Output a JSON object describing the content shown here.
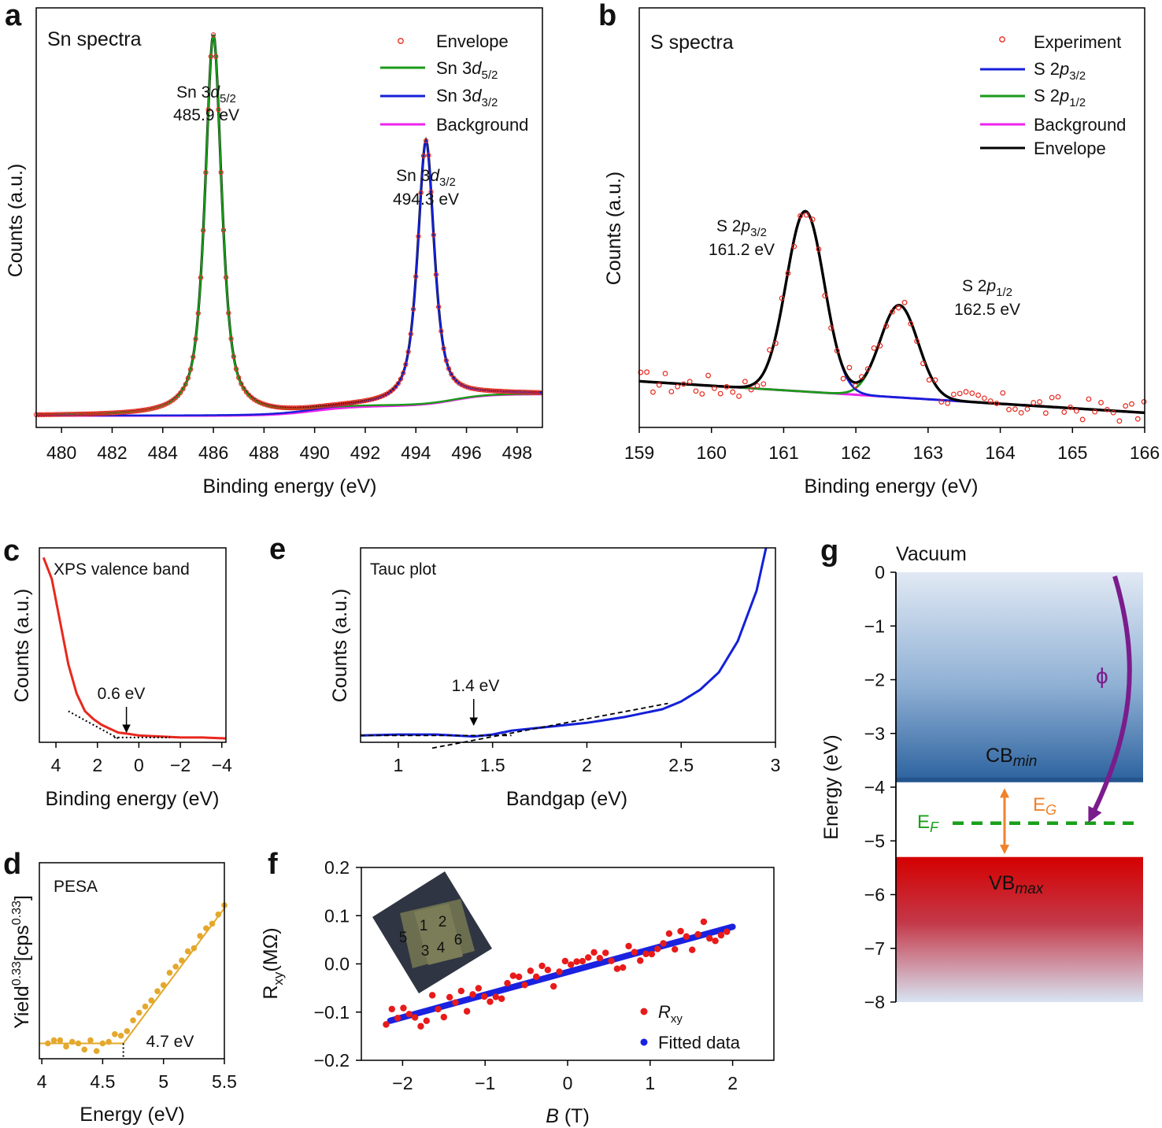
{
  "panels": {
    "a": {
      "letter": "a",
      "title": "Sn spectra"
    },
    "b": {
      "letter": "b",
      "title": "S spectra"
    },
    "c": {
      "letter": "c",
      "title": "XPS valence band"
    },
    "d": {
      "letter": "d",
      "title": "PESA"
    },
    "e": {
      "letter": "e",
      "title": "Tauc plot"
    },
    "f": {
      "letter": "f",
      "title": ""
    },
    "g": {
      "letter": "g",
      "title": "Vacuum"
    }
  },
  "chart_data": [
    {
      "id": "a",
      "type": "line",
      "title": "Sn spectra",
      "xlabel": "Binding energy (eV)",
      "ylabel": "Counts (a.u.)",
      "xlim": [
        479,
        499
      ],
      "ylim": [
        0,
        1.07
      ],
      "xticks": [
        480,
        482,
        484,
        486,
        488,
        490,
        492,
        494,
        496,
        498
      ],
      "series": [
        {
          "name": "Envelope",
          "style": "markers",
          "color": "#e8281e"
        },
        {
          "name": "Sn 3d5/2",
          "color": "#1a9a1a",
          "peaks": [
            [
              486.0,
              0.97,
              0.78
            ]
          ]
        },
        {
          "name": "Sn 3d3/2",
          "color": "#1420d8",
          "peaks": [
            [
              494.4,
              0.67,
              0.78
            ]
          ]
        },
        {
          "name": "Background",
          "color": "#ee22ee"
        }
      ],
      "background": {
        "start": 0.03,
        "step1_at": 490.0,
        "step1": 0.025,
        "step2_at": 495.5,
        "step2": 0.03
      },
      "annotations": [
        {
          "label": "Sn 3d5/2",
          "text": "485.9 eV"
        },
        {
          "label": "Sn 3d3/2",
          "text": "494.3 eV"
        }
      ]
    },
    {
      "id": "b",
      "type": "line",
      "title": "S spectra",
      "xlabel": "Binding energy (eV)",
      "ylabel": "Counts (a.u.)",
      "xlim": [
        159,
        166
      ],
      "ylim": [
        0,
        1
      ],
      "xticks": [
        159,
        160,
        161,
        162,
        163,
        164,
        165,
        166
      ],
      "series": [
        {
          "name": "Experiment",
          "style": "markers",
          "color": "#e8281e"
        },
        {
          "name": "S 2p3/2",
          "color": "#1420d8",
          "peak": [
            161.3,
            0.43,
            0.62
          ]
        },
        {
          "name": "S 2p1/2",
          "color": "#1a9a1a",
          "peak": [
            162.6,
            0.22,
            0.62
          ]
        },
        {
          "name": "Background",
          "color": "#ee22ee",
          "line": [
            [
              159,
              0.11
            ],
            [
              166,
              0.035
            ]
          ]
        },
        {
          "name": "Envelope",
          "color": "#000000"
        }
      ],
      "annotations": [
        {
          "label": "S 2p3/2",
          "text": "161.2 eV"
        },
        {
          "label": "S 2p1/2",
          "text": "162.5 eV"
        }
      ]
    },
    {
      "id": "c",
      "type": "line",
      "title": "XPS valence band",
      "xlabel": "Binding energy (eV)",
      "ylabel": "Counts (a.u.)",
      "xlim": [
        4.8,
        -4.2
      ],
      "ylim": [
        0,
        1
      ],
      "xticks": [
        4,
        2,
        0,
        -2,
        -4
      ],
      "xtick_labels": [
        "4",
        "2",
        "0",
        "−2",
        "−4"
      ],
      "curve": {
        "color": "#e8281e",
        "x": [
          4.6,
          4.2,
          3.8,
          3.4,
          3.0,
          2.6,
          2.2,
          1.8,
          1.4,
          1.0,
          0.6,
          0.0,
          -1.0,
          -2.0,
          -3.0,
          -4.2
        ],
        "y": [
          0.95,
          0.84,
          0.62,
          0.4,
          0.25,
          0.16,
          0.12,
          0.09,
          0.07,
          0.05,
          0.045,
          0.035,
          0.03,
          0.025,
          0.025,
          0.02
        ]
      },
      "onset_eV": 0.6,
      "annotation": "0.6 eV"
    },
    {
      "id": "d",
      "type": "scatter",
      "title": "PESA",
      "xlabel": "Energy (eV)",
      "ylabel": "Yield0.33[cps0.33]",
      "xlim": [
        3.98,
        5.5
      ],
      "ylim": [
        0,
        1
      ],
      "xticks": [
        4.0,
        4.5,
        5.0,
        5.5
      ],
      "color": "#e3a82c",
      "points": [
        [
          4.05,
          0.1
        ],
        [
          4.1,
          0.12
        ],
        [
          4.15,
          0.12
        ],
        [
          4.2,
          0.08
        ],
        [
          4.25,
          0.11
        ],
        [
          4.3,
          0.1
        ],
        [
          4.35,
          0.06
        ],
        [
          4.4,
          0.12
        ],
        [
          4.45,
          0.05
        ],
        [
          4.5,
          0.1
        ],
        [
          4.55,
          0.11
        ],
        [
          4.6,
          0.16
        ],
        [
          4.65,
          0.15
        ],
        [
          4.7,
          0.18
        ],
        [
          4.75,
          0.25
        ],
        [
          4.8,
          0.3
        ],
        [
          4.85,
          0.34
        ],
        [
          4.9,
          0.38
        ],
        [
          4.95,
          0.44
        ],
        [
          5.0,
          0.48
        ],
        [
          5.05,
          0.56
        ],
        [
          5.1,
          0.6
        ],
        [
          5.15,
          0.64
        ],
        [
          5.2,
          0.7
        ],
        [
          5.25,
          0.72
        ],
        [
          5.3,
          0.8
        ],
        [
          5.35,
          0.85
        ],
        [
          5.4,
          0.88
        ],
        [
          5.45,
          0.94
        ],
        [
          5.5,
          1.0
        ]
      ],
      "fit_flat": [
        [
          3.98,
          0.1
        ],
        [
          4.67,
          0.1
        ]
      ],
      "fit_rise": [
        [
          4.67,
          0.1
        ],
        [
          5.5,
          0.98
        ]
      ],
      "threshold_eV": 4.67,
      "annotation": "4.7 eV"
    },
    {
      "id": "e",
      "type": "line",
      "title": "Tauc plot",
      "xlabel": "Bandgap (eV)",
      "ylabel": "Counts (a.u.)",
      "xlim": [
        0.8,
        3.0
      ],
      "ylim": [
        0,
        1
      ],
      "xticks": [
        1.0,
        1.5,
        2.0,
        2.5,
        3.0
      ],
      "curve": {
        "color": "#1420d8",
        "x": [
          0.8,
          1.0,
          1.2,
          1.3,
          1.4,
          1.5,
          1.6,
          1.8,
          2.0,
          2.2,
          2.4,
          2.5,
          2.6,
          2.7,
          2.8,
          2.9,
          2.95
        ],
        "y": [
          0.035,
          0.04,
          0.04,
          0.035,
          0.03,
          0.04,
          0.06,
          0.08,
          0.1,
          0.13,
          0.17,
          0.21,
          0.27,
          0.36,
          0.52,
          0.78,
          1.0
        ]
      },
      "tangent": [
        [
          1.18,
          -0.03
        ],
        [
          2.43,
          0.2
        ]
      ],
      "baseline": [
        [
          0.8,
          0.035
        ],
        [
          1.6,
          0.035
        ]
      ],
      "bandgap_eV": 1.4,
      "annotation": "1.4 eV"
    },
    {
      "id": "f",
      "type": "scatter",
      "title": "",
      "xlabel": "B (T)",
      "ylabel": "Rxy(MΩ)",
      "xlim": [
        -2.5,
        2.5
      ],
      "ylim": [
        -0.2,
        0.2
      ],
      "xticks": [
        -2,
        -1,
        0,
        1,
        2
      ],
      "xtick_labels": [
        "−2",
        "−1",
        "0",
        "1",
        "2"
      ],
      "yticks": [
        -0.2,
        -0.1,
        0.0,
        0.1,
        0.2
      ],
      "ytick_labels": [
        "−0.2",
        "−0.1",
        "0.0",
        "0.1",
        "0.2"
      ],
      "series": [
        {
          "name": "Rxy",
          "style": "markers",
          "color": "#e81a1a"
        },
        {
          "name": "Fitted data",
          "color": "#1a22e0",
          "line": [
            [
              -2.15,
              -0.118
            ],
            [
              2.0,
              0.077
            ]
          ]
        }
      ],
      "inset_labels": [
        "1",
        "2",
        "3",
        "4",
        "5",
        "6"
      ]
    },
    {
      "id": "g",
      "type": "diagram",
      "title": "Vacuum",
      "ylabel": "Energy (eV)",
      "ylim": [
        -8,
        0
      ],
      "yticks": [
        0,
        -1,
        -2,
        -3,
        -4,
        -5,
        -6,
        -7,
        -8
      ],
      "ytick_labels": [
        "0",
        "−1",
        "−2",
        "−3",
        "−4",
        "−5",
        "−6",
        "−7",
        "−8"
      ],
      "levels": {
        "CB_min": -3.85,
        "E_F": -4.67,
        "VB_max": -5.3
      },
      "labels": {
        "cb_main": "CB",
        "cb_sub": "min",
        "vb_main": "VB",
        "vb_sub": "max",
        "ef_main": "E",
        "ef_sub": "F",
        "eg_main": "E",
        "eg_sub": "G",
        "phi": "ϕ"
      }
    }
  ],
  "text": {
    "a": {
      "leg_env": "Envelope",
      "leg_pre": "Sn 3",
      "leg_d": "d",
      "s52": "5/2",
      "s32": "3/2",
      "leg_bg": "Background",
      "pk_pre": "Sn 3",
      "pk_d": "d",
      "e1": "485.9 eV",
      "e2": "494.3 eV"
    },
    "b": {
      "leg_exp": "Experiment",
      "leg_pre": "S 2",
      "leg_p": "p",
      "s32": "3/2",
      "s12": "1/2",
      "leg_bg": "Background",
      "leg_env": "Envelope",
      "e1": "161.2 eV",
      "e2": "162.5 eV"
    },
    "f": {
      "leg_r": "R",
      "leg_r_sub": "xy",
      "leg_fit": "Fitted data",
      "ylab_main": "R",
      "ylab_sub": "xy",
      "ylab_rest": "(MΩ)",
      "xlab_b": "B",
      "xlab_rest": " (T)"
    },
    "d": {
      "ylab_a": "Yield",
      "ylab_sup1": "0.33",
      "ylab_b": "[cps",
      "ylab_sup2": "0.33",
      "ylab_c": "]"
    }
  }
}
